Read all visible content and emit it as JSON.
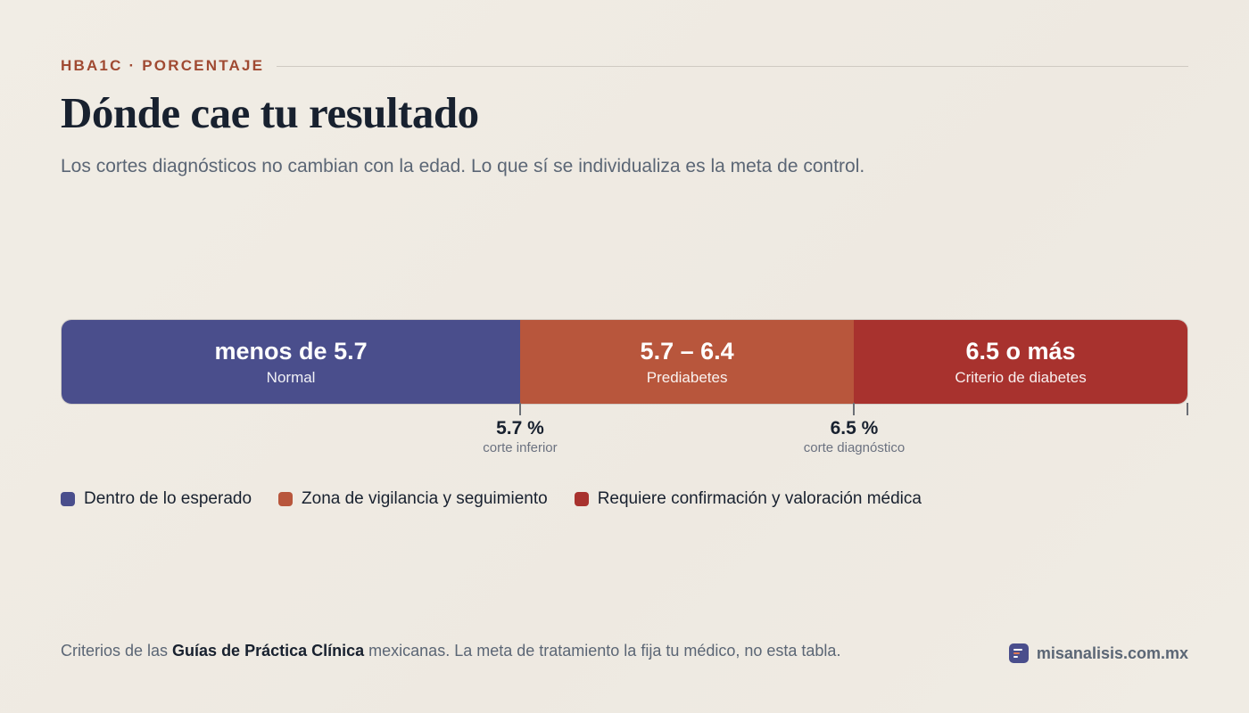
{
  "header": {
    "eyebrow": "HBA1C · PORCENTAJE",
    "title": "Dónde cae tu resultado",
    "subtitle": "Los cortes diagnósticos no cambian con la edad. Lo que sí se individualiza es la meta de control."
  },
  "chart_data": {
    "type": "bar",
    "title": "Dónde cae tu resultado",
    "xlabel": "HbA1c (%)",
    "segments": [
      {
        "range": "menos de 5.7",
        "label": "Normal",
        "from": 4.6,
        "to": 5.7,
        "color": "#4a4e8c",
        "legend": "Dentro de lo esperado"
      },
      {
        "range": "5.7 – 6.4",
        "label": "Prediabetes",
        "from": 5.7,
        "to": 6.5,
        "color": "#b8563c",
        "legend": "Zona de vigilancia y seguimiento"
      },
      {
        "range": "6.5 o más",
        "label": "Criterio de diabetes",
        "from": 6.5,
        "to": 7.3,
        "color": "#a8322e",
        "legend": "Requiere confirmación y valoración médica"
      }
    ],
    "scale": [
      4.6,
      7.3
    ],
    "cutoffs": [
      {
        "value": 5.7,
        "label": "5.7 %",
        "note": "corte inferior"
      },
      {
        "value": 6.5,
        "label": "6.5 %",
        "note": "corte diagnóstico"
      }
    ]
  },
  "footer": {
    "prefix": "Criterios de las ",
    "bold": "Guías de Práctica Clínica",
    "suffix": " mexicanas. La meta de tratamiento la fija tu médico, no esta tabla.",
    "brand": "misanalisis.com.mx",
    "brand_icon": "list-icon"
  }
}
